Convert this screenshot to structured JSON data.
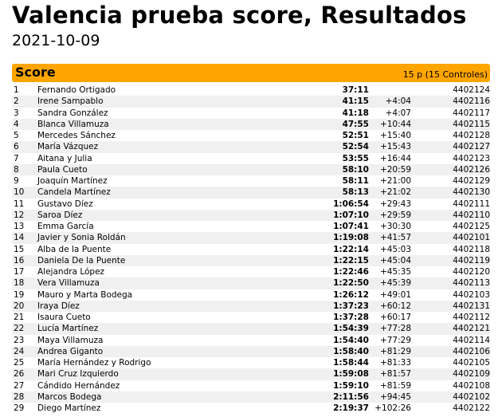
{
  "title": "Valencia prueba score, Resultados",
  "date": "2021-10-09",
  "class": {
    "name": "Score",
    "info": "15 p (15 Controles)"
  },
  "results": [
    [
      "1",
      "Fernando Ortigado",
      "37:11",
      "",
      "4402124"
    ],
    [
      "2",
      "Irene Sampablo",
      "41:15",
      "+4:04",
      "4402116"
    ],
    [
      "3",
      "Sandra González",
      "41:18",
      "+4:07",
      "4402117"
    ],
    [
      "4",
      "Blanca Villamuza",
      "47:55",
      "+10:44",
      "4402115"
    ],
    [
      "5",
      "Mercedes Sánchez",
      "52:51",
      "+15:40",
      "4402128"
    ],
    [
      "6",
      "María Vázquez",
      "52:54",
      "+15:43",
      "4402127"
    ],
    [
      "7",
      "Aitana y Julia",
      "53:55",
      "+16:44",
      "4402123"
    ],
    [
      "8",
      "Paula Cueto",
      "58:10",
      "+20:59",
      "4402126"
    ],
    [
      "9",
      "Joaquín Martínez",
      "58:11",
      "+21:00",
      "4402129"
    ],
    [
      "10",
      "Candela Martínez",
      "58:13",
      "+21:02",
      "4402130"
    ],
    [
      "11",
      "Gustavo Díez",
      "1:06:54",
      "+29:43",
      "4402111"
    ],
    [
      "12",
      "Saroa Díez",
      "1:07:10",
      "+29:59",
      "4402110"
    ],
    [
      "13",
      "Emma García",
      "1:07:41",
      "+30:30",
      "4402125"
    ],
    [
      "14",
      "Javier y Sonia Roldán",
      "1:19:08",
      "+41:57",
      "4402101"
    ],
    [
      "15",
      "Alba de la Puente",
      "1:22:14",
      "+45:03",
      "4402118"
    ],
    [
      "16",
      "Daniela De la Puente",
      "1:22:15",
      "+45:04",
      "4402119"
    ],
    [
      "17",
      "Alejandra López",
      "1:22:46",
      "+45:35",
      "4402120"
    ],
    [
      "18",
      "Vera Villamuza",
      "1:22:50",
      "+45:39",
      "4402113"
    ],
    [
      "19",
      "Mauro y Marta Bodega",
      "1:26:12",
      "+49:01",
      "4402103"
    ],
    [
      "20",
      "Iraya Díez",
      "1:37:23",
      "+60:12",
      "4402131"
    ],
    [
      "21",
      "Isaura Cueto",
      "1:37:28",
      "+60:17",
      "4402112"
    ],
    [
      "22",
      "Lucía Martínez",
      "1:54:39",
      "+77:28",
      "4402121"
    ],
    [
      "23",
      "Maya Villamuza",
      "1:54:40",
      "+77:29",
      "4402114"
    ],
    [
      "24",
      "Andrea Giganto",
      "1:58:40",
      "+81:29",
      "4402106"
    ],
    [
      "25",
      "María Hernández y Rodrigo",
      "1:58:44",
      "+81:33",
      "4402105"
    ],
    [
      "26",
      "Mari Cruz Izquierdo",
      "1:59:08",
      "+81:57",
      "4402109"
    ],
    [
      "27",
      "Cándido Hernández",
      "1:59:10",
      "+81:59",
      "4402108"
    ],
    [
      "28",
      "Marcos Bodega",
      "2:11:56",
      "+94:45",
      "4402102"
    ],
    [
      "29",
      "Diego Martínez",
      "2:19:37",
      "+102:26",
      "4402122"
    ]
  ],
  "colors": {
    "class_header": "#ffa500",
    "row_alt": "#f0f0f0"
  }
}
